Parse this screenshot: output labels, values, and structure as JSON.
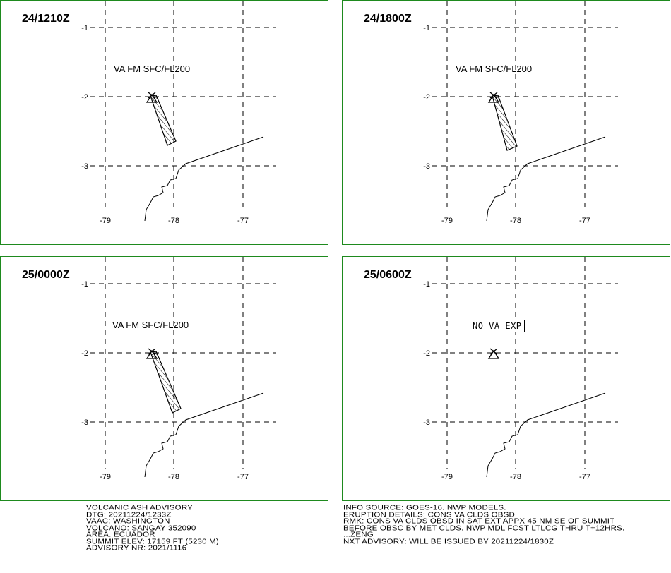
{
  "panels": [
    {
      "time": "24/1210Z",
      "va_label": "VA FM SFC/FL200",
      "no_va_label": "",
      "plume": [
        [
          213,
          134
        ],
        [
          222,
          133
        ],
        [
          248,
          198
        ],
        [
          237,
          204
        ]
      ]
    },
    {
      "time": "24/1800Z",
      "va_label": "VA FM SFC/FL200",
      "no_va_label": "",
      "plume": [
        [
          213,
          133
        ],
        [
          703,
          132
        ],
        [
          731,
          206
        ],
        [
          718,
          212
        ]
      ]
    },
    {
      "time": "25/0000Z",
      "va_label": "VA FM SFC/FL200",
      "no_va_label": "",
      "plume": [
        [
          213,
          133
        ],
        [
          219,
          133
        ],
        [
          255,
          579
        ],
        [
          243,
          584
        ]
      ]
    },
    {
      "time": "25/0600Z",
      "va_label": "",
      "no_va_label": "NO VA EXP",
      "plume": []
    }
  ],
  "axis": {
    "lat_labels": [
      "-1",
      "-2",
      "-3"
    ],
    "lon_labels": [
      "-79",
      "-78",
      "-77"
    ]
  },
  "advisory_left": [
    "VOLCANIC ASH ADVISORY",
    "DTG: 20211224/1233Z",
    "VAAC: WASHINGTON",
    "VOLCANO: SANGAY 352090",
    "AREA: ECUADOR",
    "SUMMIT ELEV: 17159 FT (5230 M)",
    "ADVISORY NR: 2021/1116"
  ],
  "advisory_right": [
    "INFO SOURCE: GOES-16. NWP MODELS.",
    "ERUPTION DETAILS: CONS VA CLDS OBSD",
    "RMK: CONS VA CLDS OBSD IN SAT EXT APPX 45 NM SE OF SUMMIT",
    "BEFORE OBSC BY MET CLDS. NWP MDL FCST LTLCG THRU T+12HRS.",
    "...ZENG",
    "NXT ADVISORY: WILL BE ISSUED BY 20211224/1830Z"
  ]
}
